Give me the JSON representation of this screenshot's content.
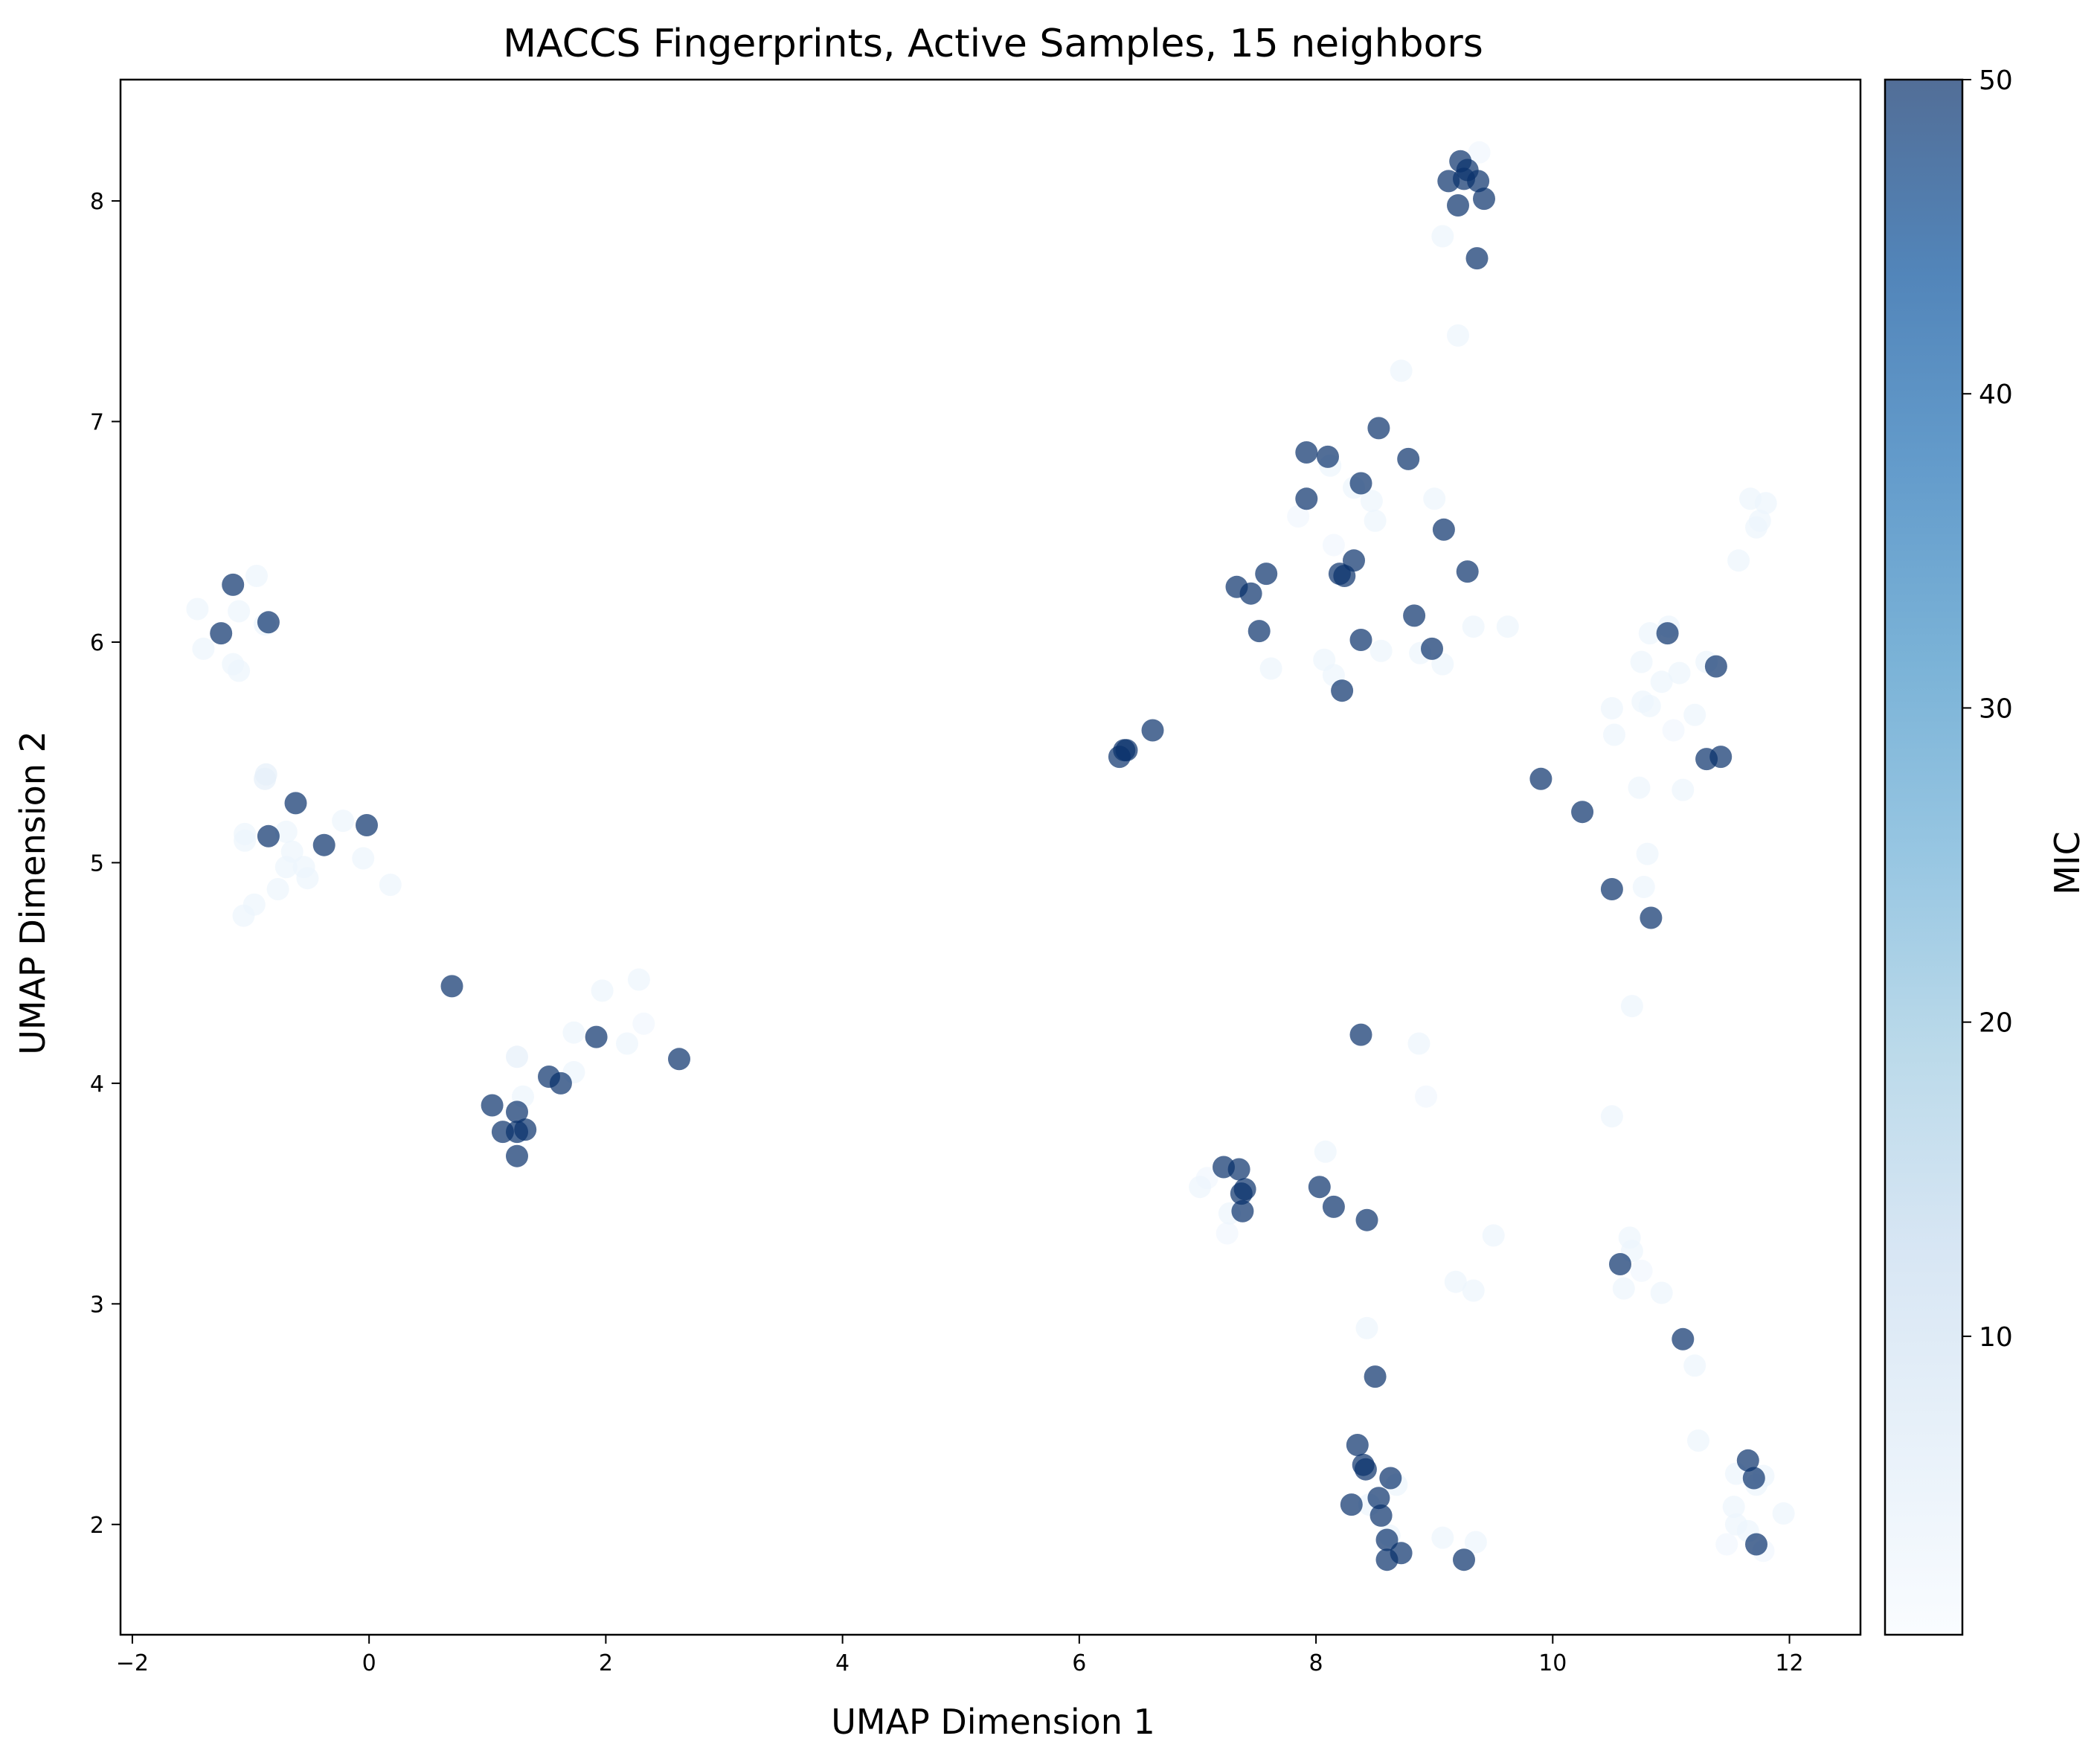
{
  "chart_data": {
    "type": "scatter",
    "title": "MACCS Fingerprints, Active Samples, 15 neighbors",
    "xlabel": "UMAP Dimension 1",
    "ylabel": "UMAP Dimension 2",
    "xlim": [
      -2.1,
      12.6
    ],
    "ylim": [
      1.5,
      8.55
    ],
    "xticks": [
      -2,
      0,
      2,
      4,
      6,
      8,
      10,
      12
    ],
    "yticks": [
      2,
      3,
      4,
      5,
      6,
      7,
      8
    ],
    "grid": false,
    "colorbar": {
      "label": "MIC",
      "range": [
        0.5,
        50
      ],
      "ticks": [
        10,
        20,
        30,
        40,
        50
      ],
      "colormap": "Blues",
      "colors": [
        "#f7fbff",
        "#deebf7",
        "#c6dbef",
        "#9ecae1",
        "#6baed6",
        "#4292c6",
        "#2171b5",
        "#08519c",
        "#08306b"
      ]
    },
    "points": [
      {
        "x": -1.15,
        "y": 6.26,
        "v": 50
      },
      {
        "x": -1.25,
        "y": 6.04,
        "v": 50
      },
      {
        "x": -0.85,
        "y": 6.09,
        "v": 50
      },
      {
        "x": -1.45,
        "y": 6.15,
        "v": 3
      },
      {
        "x": -1.4,
        "y": 5.97,
        "v": 3
      },
      {
        "x": -1.1,
        "y": 6.14,
        "v": 3
      },
      {
        "x": -0.95,
        "y": 6.3,
        "v": 3
      },
      {
        "x": -1.15,
        "y": 5.9,
        "v": 3
      },
      {
        "x": -1.1,
        "y": 5.87,
        "v": 3
      },
      {
        "x": -0.88,
        "y": 6.08,
        "v": 3
      },
      {
        "x": -0.62,
        "y": 5.27,
        "v": 50
      },
      {
        "x": -0.85,
        "y": 5.12,
        "v": 50
      },
      {
        "x": -0.38,
        "y": 5.08,
        "v": 50
      },
      {
        "x": -0.02,
        "y": 5.17,
        "v": 50
      },
      {
        "x": -0.87,
        "y": 5.4,
        "v": 5
      },
      {
        "x": -0.88,
        "y": 5.38,
        "v": 5
      },
      {
        "x": -1.05,
        "y": 5.13,
        "v": 3
      },
      {
        "x": -1.05,
        "y": 5.1,
        "v": 3
      },
      {
        "x": -0.7,
        "y": 5.14,
        "v": 3
      },
      {
        "x": -0.65,
        "y": 5.05,
        "v": 3
      },
      {
        "x": -0.7,
        "y": 4.98,
        "v": 3
      },
      {
        "x": -0.55,
        "y": 4.98,
        "v": 3
      },
      {
        "x": -0.52,
        "y": 4.93,
        "v": 3
      },
      {
        "x": -0.77,
        "y": 4.88,
        "v": 3
      },
      {
        "x": -0.97,
        "y": 4.81,
        "v": 3
      },
      {
        "x": -1.06,
        "y": 4.76,
        "v": 3
      },
      {
        "x": -0.22,
        "y": 5.19,
        "v": 3
      },
      {
        "x": -0.05,
        "y": 5.02,
        "v": 3
      },
      {
        "x": 0.18,
        "y": 4.9,
        "v": 3
      },
      {
        "x": 0.7,
        "y": 4.44,
        "v": 50
      },
      {
        "x": 1.04,
        "y": 3.9,
        "v": 50
      },
      {
        "x": 1.13,
        "y": 3.78,
        "v": 50
      },
      {
        "x": 1.25,
        "y": 3.87,
        "v": 50
      },
      {
        "x": 1.25,
        "y": 3.78,
        "v": 50
      },
      {
        "x": 1.32,
        "y": 3.79,
        "v": 50
      },
      {
        "x": 1.25,
        "y": 3.67,
        "v": 50
      },
      {
        "x": 1.52,
        "y": 4.03,
        "v": 50
      },
      {
        "x": 1.62,
        "y": 4.0,
        "v": 50
      },
      {
        "x": 1.92,
        "y": 4.21,
        "v": 50
      },
      {
        "x": 2.62,
        "y": 4.11,
        "v": 50
      },
      {
        "x": 1.25,
        "y": 4.12,
        "v": 5
      },
      {
        "x": 1.3,
        "y": 3.94,
        "v": 3
      },
      {
        "x": 1.27,
        "y": 3.78,
        "v": 3
      },
      {
        "x": 1.73,
        "y": 4.23,
        "v": 3
      },
      {
        "x": 1.73,
        "y": 4.05,
        "v": 3
      },
      {
        "x": 1.97,
        "y": 4.42,
        "v": 3
      },
      {
        "x": 2.18,
        "y": 4.18,
        "v": 3
      },
      {
        "x": 2.28,
        "y": 4.47,
        "v": 3
      },
      {
        "x": 2.32,
        "y": 4.27,
        "v": 2
      },
      {
        "x": 6.34,
        "y": 5.48,
        "v": 50
      },
      {
        "x": 6.38,
        "y": 5.51,
        "v": 50
      },
      {
        "x": 6.4,
        "y": 5.51,
        "v": 50
      },
      {
        "x": 6.62,
        "y": 5.6,
        "v": 50
      },
      {
        "x": 9.22,
        "y": 8.18,
        "v": 50
      },
      {
        "x": 9.28,
        "y": 8.14,
        "v": 50
      },
      {
        "x": 9.12,
        "y": 8.09,
        "v": 50
      },
      {
        "x": 9.25,
        "y": 8.1,
        "v": 50
      },
      {
        "x": 9.37,
        "y": 8.09,
        "v": 50
      },
      {
        "x": 9.42,
        "y": 8.01,
        "v": 50
      },
      {
        "x": 9.2,
        "y": 7.98,
        "v": 50
      },
      {
        "x": 9.36,
        "y": 7.74,
        "v": 50
      },
      {
        "x": 9.38,
        "y": 8.22,
        "v": 2
      },
      {
        "x": 9.07,
        "y": 7.84,
        "v": 3
      },
      {
        "x": 9.2,
        "y": 7.39,
        "v": 3
      },
      {
        "x": 8.72,
        "y": 7.23,
        "v": 3
      },
      {
        "x": 8.53,
        "y": 6.97,
        "v": 50
      },
      {
        "x": 7.92,
        "y": 6.86,
        "v": 50
      },
      {
        "x": 8.1,
        "y": 6.84,
        "v": 50
      },
      {
        "x": 8.78,
        "y": 6.83,
        "v": 50
      },
      {
        "x": 8.38,
        "y": 6.72,
        "v": 50
      },
      {
        "x": 7.92,
        "y": 6.65,
        "v": 50
      },
      {
        "x": 9.08,
        "y": 6.51,
        "v": 50
      },
      {
        "x": 8.32,
        "y": 6.37,
        "v": 50
      },
      {
        "x": 7.58,
        "y": 6.31,
        "v": 50
      },
      {
        "x": 8.2,
        "y": 6.31,
        "v": 50
      },
      {
        "x": 8.24,
        "y": 6.3,
        "v": 50
      },
      {
        "x": 9.28,
        "y": 6.32,
        "v": 50
      },
      {
        "x": 7.33,
        "y": 6.25,
        "v": 50
      },
      {
        "x": 7.45,
        "y": 6.22,
        "v": 50
      },
      {
        "x": 8.83,
        "y": 6.12,
        "v": 50
      },
      {
        "x": 7.52,
        "y": 6.05,
        "v": 50
      },
      {
        "x": 8.38,
        "y": 6.01,
        "v": 50
      },
      {
        "x": 8.98,
        "y": 5.97,
        "v": 50
      },
      {
        "x": 8.22,
        "y": 5.78,
        "v": 50
      },
      {
        "x": 8.12,
        "y": 6.8,
        "v": 3
      },
      {
        "x": 8.32,
        "y": 6.7,
        "v": 3
      },
      {
        "x": 8.47,
        "y": 6.64,
        "v": 3
      },
      {
        "x": 9.0,
        "y": 6.65,
        "v": 3
      },
      {
        "x": 8.5,
        "y": 6.55,
        "v": 3
      },
      {
        "x": 7.85,
        "y": 6.57,
        "v": 2
      },
      {
        "x": 8.15,
        "y": 6.44,
        "v": 2
      },
      {
        "x": 9.33,
        "y": 6.07,
        "v": 3
      },
      {
        "x": 9.62,
        "y": 6.07,
        "v": 3
      },
      {
        "x": 8.55,
        "y": 5.96,
        "v": 3
      },
      {
        "x": 8.88,
        "y": 5.95,
        "v": 3
      },
      {
        "x": 9.07,
        "y": 5.9,
        "v": 3
      },
      {
        "x": 8.07,
        "y": 5.92,
        "v": 3
      },
      {
        "x": 7.62,
        "y": 5.88,
        "v": 3
      },
      {
        "x": 8.15,
        "y": 5.85,
        "v": 3
      },
      {
        "x": 11.67,
        "y": 6.65,
        "v": 3
      },
      {
        "x": 11.8,
        "y": 6.63,
        "v": 3
      },
      {
        "x": 11.75,
        "y": 6.55,
        "v": 3
      },
      {
        "x": 11.72,
        "y": 6.52,
        "v": 3
      },
      {
        "x": 11.57,
        "y": 6.37,
        "v": 3
      },
      {
        "x": 10.97,
        "y": 6.04,
        "v": 50
      },
      {
        "x": 11.38,
        "y": 5.89,
        "v": 50
      },
      {
        "x": 11.3,
        "y": 5.47,
        "v": 50
      },
      {
        "x": 11.42,
        "y": 5.48,
        "v": 50
      },
      {
        "x": 9.9,
        "y": 5.38,
        "v": 50
      },
      {
        "x": 10.25,
        "y": 5.23,
        "v": 50
      },
      {
        "x": 10.5,
        "y": 4.88,
        "v": 50
      },
      {
        "x": 10.83,
        "y": 4.75,
        "v": 50
      },
      {
        "x": 10.82,
        "y": 6.04,
        "v": 3
      },
      {
        "x": 10.98,
        "y": 6.07,
        "v": 3
      },
      {
        "x": 10.75,
        "y": 5.91,
        "v": 3
      },
      {
        "x": 11.07,
        "y": 5.86,
        "v": 3
      },
      {
        "x": 11.3,
        "y": 5.91,
        "v": 3
      },
      {
        "x": 10.92,
        "y": 5.82,
        "v": 3
      },
      {
        "x": 10.76,
        "y": 5.73,
        "v": 3
      },
      {
        "x": 10.82,
        "y": 5.71,
        "v": 3
      },
      {
        "x": 10.5,
        "y": 5.7,
        "v": 3
      },
      {
        "x": 11.2,
        "y": 5.67,
        "v": 3
      },
      {
        "x": 11.02,
        "y": 5.6,
        "v": 2
      },
      {
        "x": 10.52,
        "y": 5.58,
        "v": 3
      },
      {
        "x": 10.73,
        "y": 5.34,
        "v": 3
      },
      {
        "x": 11.1,
        "y": 5.33,
        "v": 3
      },
      {
        "x": 10.8,
        "y": 5.04,
        "v": 3
      },
      {
        "x": 10.77,
        "y": 4.89,
        "v": 3
      },
      {
        "x": 10.67,
        "y": 4.35,
        "v": 3
      },
      {
        "x": 10.5,
        "y": 3.85,
        "v": 3
      },
      {
        "x": 8.38,
        "y": 4.22,
        "v": 50
      },
      {
        "x": 8.87,
        "y": 4.18,
        "v": 3
      },
      {
        "x": 8.93,
        "y": 3.94,
        "v": 2
      },
      {
        "x": 7.22,
        "y": 3.62,
        "v": 50
      },
      {
        "x": 7.35,
        "y": 3.61,
        "v": 50
      },
      {
        "x": 7.37,
        "y": 3.5,
        "v": 50
      },
      {
        "x": 7.4,
        "y": 3.52,
        "v": 50
      },
      {
        "x": 7.38,
        "y": 3.42,
        "v": 50
      },
      {
        "x": 8.03,
        "y": 3.53,
        "v": 50
      },
      {
        "x": 8.15,
        "y": 3.44,
        "v": 50
      },
      {
        "x": 8.43,
        "y": 3.38,
        "v": 50
      },
      {
        "x": 7.02,
        "y": 3.53,
        "v": 3
      },
      {
        "x": 7.08,
        "y": 3.57,
        "v": 2
      },
      {
        "x": 7.27,
        "y": 3.41,
        "v": 3
      },
      {
        "x": 7.25,
        "y": 3.32,
        "v": 2
      },
      {
        "x": 8.08,
        "y": 3.69,
        "v": 3
      },
      {
        "x": 9.5,
        "y": 3.31,
        "v": 3
      },
      {
        "x": 9.18,
        "y": 3.1,
        "v": 3
      },
      {
        "x": 9.33,
        "y": 3.06,
        "v": 3
      },
      {
        "x": 8.43,
        "y": 2.89,
        "v": 3
      },
      {
        "x": 10.57,
        "y": 3.18,
        "v": 50
      },
      {
        "x": 11.1,
        "y": 2.84,
        "v": 50
      },
      {
        "x": 10.65,
        "y": 3.3,
        "v": 3
      },
      {
        "x": 10.67,
        "y": 3.24,
        "v": 3
      },
      {
        "x": 10.75,
        "y": 3.15,
        "v": 2
      },
      {
        "x": 10.6,
        "y": 3.07,
        "v": 3
      },
      {
        "x": 10.92,
        "y": 3.05,
        "v": 3
      },
      {
        "x": 11.2,
        "y": 2.72,
        "v": 3
      },
      {
        "x": 11.23,
        "y": 2.38,
        "v": 3
      },
      {
        "x": 8.5,
        "y": 2.67,
        "v": 50
      },
      {
        "x": 8.35,
        "y": 2.36,
        "v": 50
      },
      {
        "x": 8.4,
        "y": 2.27,
        "v": 50
      },
      {
        "x": 8.42,
        "y": 2.25,
        "v": 50
      },
      {
        "x": 8.63,
        "y": 2.21,
        "v": 50
      },
      {
        "x": 8.53,
        "y": 2.12,
        "v": 50
      },
      {
        "x": 8.3,
        "y": 2.09,
        "v": 50
      },
      {
        "x": 8.55,
        "y": 2.04,
        "v": 50
      },
      {
        "x": 8.6,
        "y": 1.93,
        "v": 50
      },
      {
        "x": 8.6,
        "y": 1.84,
        "v": 50
      },
      {
        "x": 8.72,
        "y": 1.87,
        "v": 50
      },
      {
        "x": 9.25,
        "y": 1.84,
        "v": 50
      },
      {
        "x": 8.68,
        "y": 2.18,
        "v": 3
      },
      {
        "x": 8.45,
        "y": 2.09,
        "v": 3
      },
      {
        "x": 8.62,
        "y": 1.95,
        "v": 3
      },
      {
        "x": 9.07,
        "y": 1.94,
        "v": 3
      },
      {
        "x": 9.35,
        "y": 1.92,
        "v": 3
      },
      {
        "x": 11.65,
        "y": 2.29,
        "v": 50
      },
      {
        "x": 11.7,
        "y": 2.21,
        "v": 50
      },
      {
        "x": 11.72,
        "y": 1.91,
        "v": 50
      },
      {
        "x": 11.55,
        "y": 2.23,
        "v": 3
      },
      {
        "x": 11.78,
        "y": 2.22,
        "v": 3
      },
      {
        "x": 11.72,
        "y": 2.18,
        "v": 3
      },
      {
        "x": 11.53,
        "y": 2.08,
        "v": 3
      },
      {
        "x": 11.95,
        "y": 2.05,
        "v": 3
      },
      {
        "x": 11.55,
        "y": 2.0,
        "v": 3
      },
      {
        "x": 11.65,
        "y": 1.97,
        "v": 3
      },
      {
        "x": 11.47,
        "y": 1.91,
        "v": 2
      },
      {
        "x": 11.78,
        "y": 1.88,
        "v": 2
      }
    ]
  }
}
